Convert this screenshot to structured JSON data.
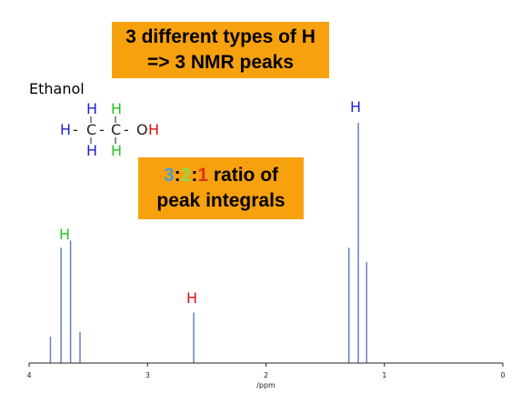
{
  "callouts": {
    "types_line1": "3 different types of H",
    "types_line2": "=> 3 NMR peaks",
    "ratio_3": "3",
    "ratio_sep1": ":",
    "ratio_2": "2",
    "ratio_sep2": ":",
    "ratio_1": "1",
    "ratio_rest": " ratio of",
    "ratio_line2": "peak integrals"
  },
  "molecule": {
    "name": "Ethanol",
    "atoms": {
      "h_top_left": "H",
      "h_top_right": "H",
      "h_left": "H",
      "bond_1": "-",
      "c_left": "C",
      "bond_2": "-",
      "c_right": "C",
      "bond_3": "-",
      "o": "O",
      "h_oh": "H",
      "h_bottom_left": "H",
      "h_bottom_right": "H"
    }
  },
  "peak_labels": {
    "ch2": "H",
    "oh": "H",
    "ch3": "H"
  },
  "colors": {
    "callout_bg": "#f7a10e",
    "ch3_blue": "#1f1fcc",
    "ch2_green": "#22c422",
    "oh_red": "#dd1111",
    "spectrum_line": "#6b7fc4"
  },
  "chart_data": {
    "type": "line",
    "xlabel": "/ppm",
    "xlim": [
      4,
      0
    ],
    "x_reversed": true,
    "x_ticks": [
      "4",
      "3",
      "2",
      "1",
      "0"
    ],
    "x_tick_values": [
      4,
      3,
      2,
      1,
      0
    ],
    "ylim": [
      0,
      1
    ],
    "series": [
      {
        "peaks": [
          {
            "x": 3.82,
            "y": 0.11
          },
          {
            "x": 3.73,
            "y": 0.48
          },
          {
            "x": 3.65,
            "y": 0.51
          },
          {
            "x": 3.57,
            "y": 0.13
          },
          {
            "x": 2.61,
            "y": 0.21
          },
          {
            "x": 1.3,
            "y": 0.48
          },
          {
            "x": 1.22,
            "y": 1.0
          },
          {
            "x": 1.15,
            "y": 0.42
          }
        ]
      }
    ]
  }
}
